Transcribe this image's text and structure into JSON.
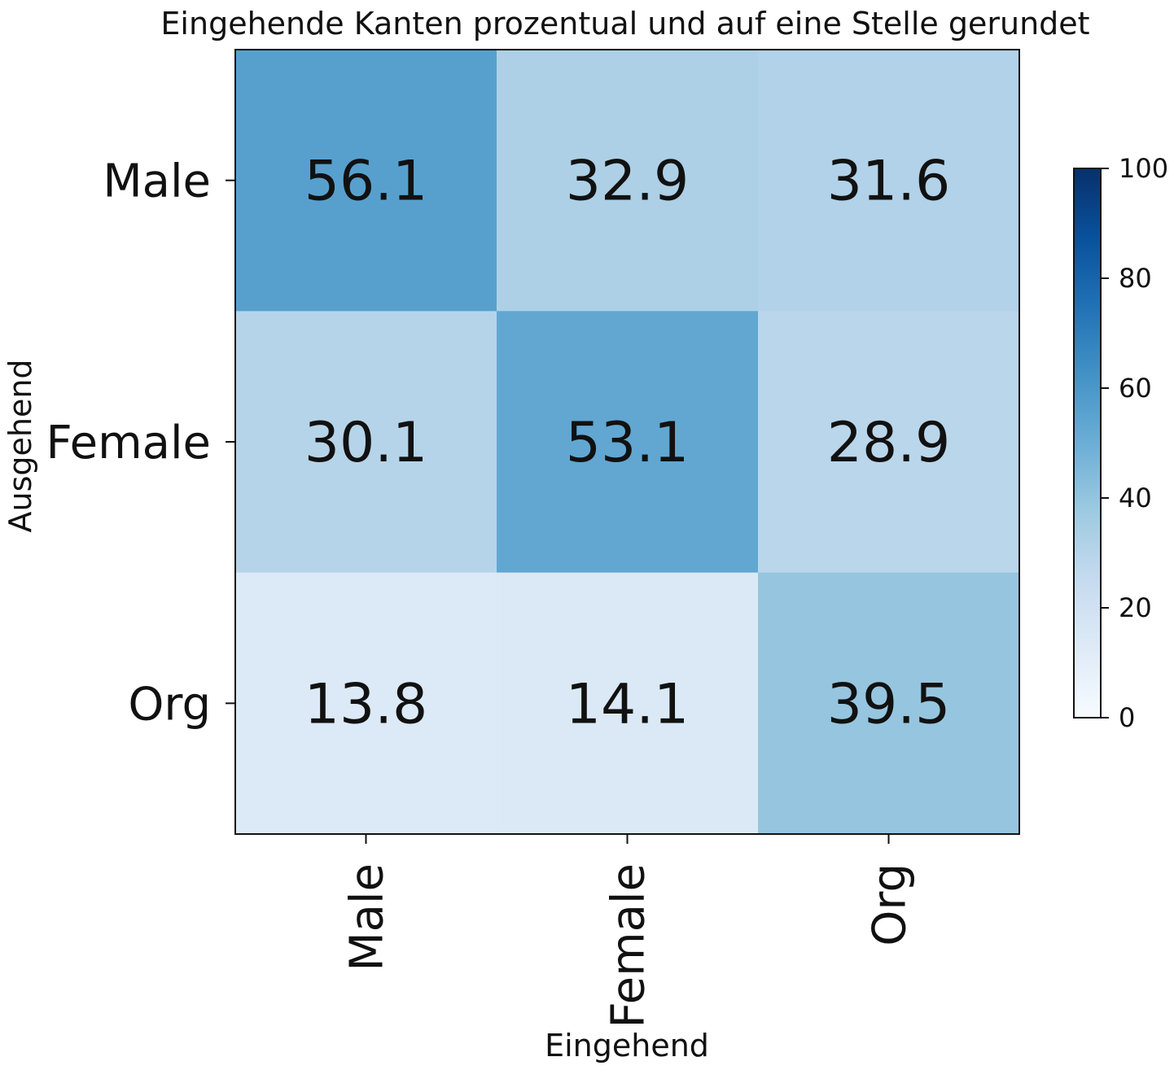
{
  "chart_data": {
    "type": "heatmap",
    "title": "Eingehende Kanten prozentual und auf eine Stelle gerundet",
    "xlabel": "Eingehend",
    "ylabel": "Ausgehend",
    "x_categories": [
      "Male",
      "Female",
      "Org"
    ],
    "y_categories": [
      "Male",
      "Female",
      "Org"
    ],
    "values": [
      [
        56.1,
        32.9,
        31.6
      ],
      [
        30.1,
        53.1,
        28.9
      ],
      [
        13.8,
        14.1,
        39.5
      ]
    ],
    "value_labels": [
      [
        "56.1",
        "32.9",
        "31.6"
      ],
      [
        "30.1",
        "53.1",
        "28.9"
      ],
      [
        "13.8",
        "14.1",
        "39.5"
      ]
    ],
    "colorbar": {
      "range": [
        0,
        100
      ],
      "ticks": [
        0,
        20,
        40,
        60,
        80,
        100
      ],
      "tick_labels": [
        "0",
        "20",
        "40",
        "60",
        "80",
        "100"
      ]
    },
    "colormap": "Blues",
    "colors": [
      "#f7fbff",
      "#deebf7",
      "#c6dbef",
      "#9ecae1",
      "#6baed6",
      "#4292c6",
      "#2171b5",
      "#08519c",
      "#08306b"
    ]
  }
}
